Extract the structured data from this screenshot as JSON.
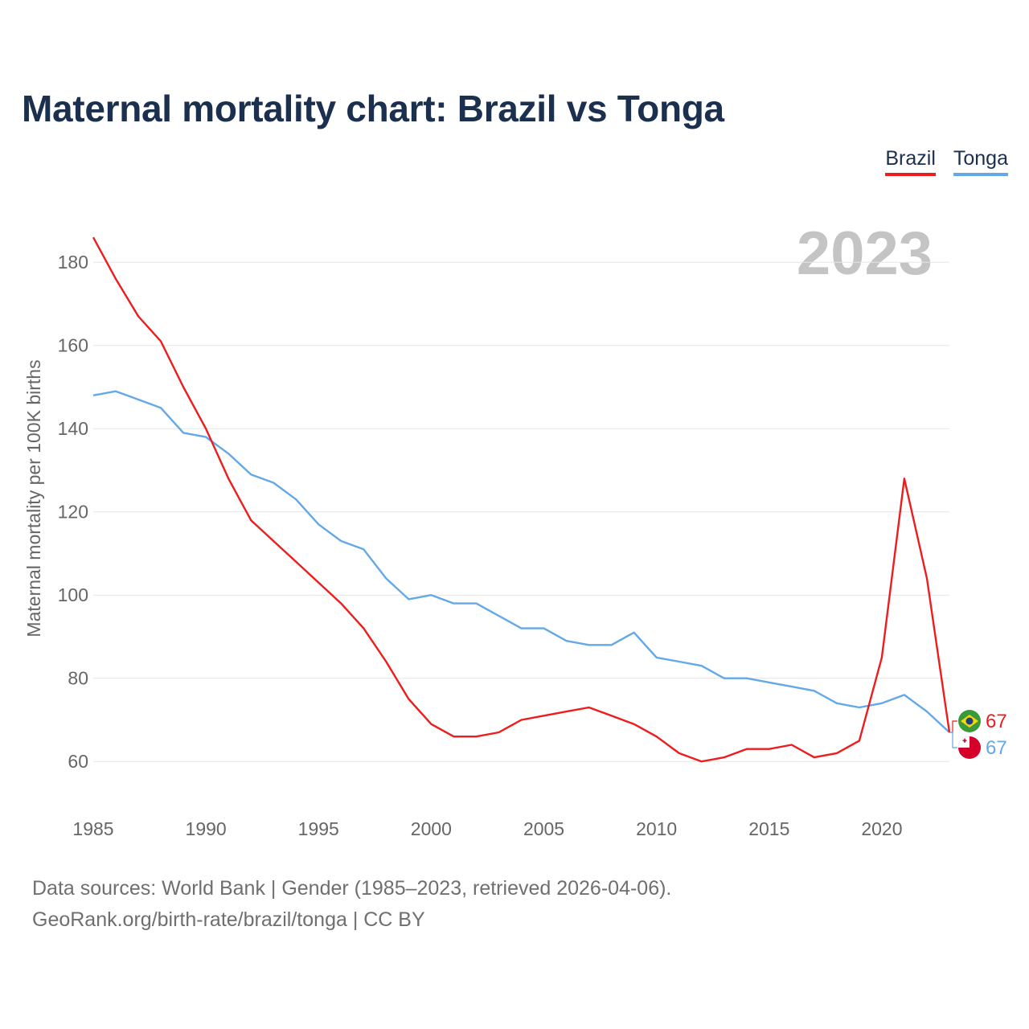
{
  "title": "Maternal mortality chart: Brazil vs Tonga",
  "legend": [
    {
      "name": "Brazil",
      "color": "#ee1c1c"
    },
    {
      "name": "Tonga",
      "color": "#63a8e8"
    }
  ],
  "footer": {
    "line1": "Data sources: World Bank | Gender (1985–2023, retrieved 2026-04-06).",
    "line2": "GeoRank.org/birth-rate/brazil/tonga | CC BY"
  },
  "chart_data": {
    "type": "line",
    "title": "Maternal mortality chart: Brazil vs Tonga",
    "year_label": "2023",
    "xlabel": "",
    "ylabel": "Maternal mortality per 100K births",
    "xlim": [
      1985,
      2023
    ],
    "ylim": [
      50,
      187
    ],
    "x_ticks": [
      1985,
      1990,
      1995,
      2000,
      2005,
      2010,
      2015,
      2020
    ],
    "y_ticks": [
      60,
      80,
      100,
      120,
      140,
      160,
      180
    ],
    "grid": true,
    "legend_position": "top-right",
    "x": [
      1985,
      1986,
      1987,
      1988,
      1989,
      1990,
      1991,
      1992,
      1993,
      1994,
      1995,
      1996,
      1997,
      1998,
      1999,
      2000,
      2001,
      2002,
      2003,
      2004,
      2005,
      2006,
      2007,
      2008,
      2009,
      2010,
      2011,
      2012,
      2013,
      2014,
      2015,
      2016,
      2017,
      2018,
      2019,
      2020,
      2021,
      2022,
      2023
    ],
    "series": [
      {
        "name": "Brazil",
        "color": "#ee1c1c",
        "end_label": "67",
        "values": [
          186,
          176,
          167,
          161,
          150,
          140,
          128,
          118,
          113,
          108,
          103,
          98,
          92,
          84,
          75,
          69,
          66,
          66,
          67,
          70,
          71,
          72,
          73,
          71,
          69,
          66,
          62,
          60,
          61,
          63,
          63,
          64,
          61,
          62,
          65,
          85,
          128,
          104,
          67
        ]
      },
      {
        "name": "Tonga",
        "color": "#63a8e8",
        "end_label": "67",
        "values": [
          148,
          149,
          147,
          145,
          139,
          138,
          134,
          129,
          127,
          123,
          117,
          113,
          111,
          104,
          99,
          100,
          98,
          98,
          95,
          92,
          92,
          89,
          88,
          88,
          91,
          85,
          84,
          83,
          80,
          80,
          79,
          78,
          77,
          74,
          73,
          74,
          76,
          72,
          67
        ]
      }
    ]
  }
}
